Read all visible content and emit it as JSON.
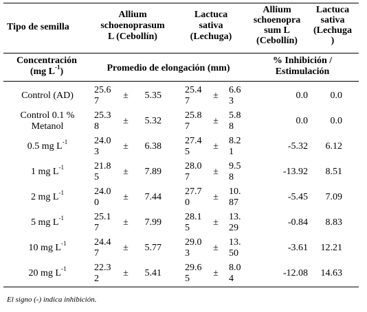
{
  "header": {
    "tipo_semilla": "Tipo de semilla",
    "allium_1": [
      "Allium",
      "schoenoprasum",
      "L (Cebollín)"
    ],
    "lactuca_1": [
      "Lactuca",
      "sativa",
      "(Lechuga)"
    ],
    "allium_2": [
      "Allium",
      "schoenopra",
      "sum L",
      "(Cebollín)"
    ],
    "lactuca_2": [
      "Lactuca",
      "sativa",
      "(Lechuga",
      ")"
    ],
    "concentracion": "Concentración",
    "concentracion_unit_pre": "(mg L",
    "concentracion_unit_sup": "-1",
    "concentracion_unit_post": ")",
    "promedio": "Promedio de elongación (mm)",
    "inhibicion_1": "% Inhibición /",
    "inhibicion_2": "Estimulación"
  },
  "rows": [
    {
      "label1": "Control (AD)",
      "label2": "",
      "sup": "",
      "a_mean": [
        "25.6",
        "7"
      ],
      "pm": "±",
      "a_sd": "5.35",
      "l_mean": [
        "25.4",
        "7"
      ],
      "l_sd": [
        "6.6",
        "3"
      ],
      "a_pct": "0.0",
      "l_pct": "0.0"
    },
    {
      "label1": "Control 0.1 %",
      "label2": "Metanol",
      "sup": "",
      "a_mean": [
        "25.3",
        "8"
      ],
      "pm": "±",
      "a_sd": "5.32",
      "l_mean": [
        "25.8",
        "7"
      ],
      "l_sd": [
        "5.8",
        "8"
      ],
      "a_pct": "0.0",
      "l_pct": "0.0"
    },
    {
      "label1": "0.5 mg L",
      "label2": "",
      "sup": "-1",
      "a_mean": [
        "24.0",
        "3"
      ],
      "pm": "±",
      "a_sd": "6.38",
      "l_mean": [
        "27.4",
        "5"
      ],
      "l_sd": [
        "8.2",
        "1"
      ],
      "a_pct": "-5.32",
      "l_pct": "6.12"
    },
    {
      "label1": "1 mg L",
      "label2": "",
      "sup": "-1",
      "a_mean": [
        "21.8",
        "5"
      ],
      "pm": "±",
      "a_sd": "7.89",
      "l_mean": [
        "28.0",
        "7"
      ],
      "l_sd": [
        "9.5",
        "8"
      ],
      "a_pct": "-13.92",
      "l_pct": "8.51"
    },
    {
      "label1": "2 mg L",
      "label2": "",
      "sup": "-1",
      "a_mean": [
        "24.0",
        "0"
      ],
      "pm": "±",
      "a_sd": "7.44",
      "l_mean": [
        "27.7",
        "0"
      ],
      "l_sd": [
        "10.",
        "87"
      ],
      "a_pct": "-5.45",
      "l_pct": "7.09"
    },
    {
      "label1": "5 mg L",
      "label2": "",
      "sup": "-1",
      "a_mean": [
        "25.1",
        "7"
      ],
      "pm": "±",
      "a_sd": "7.99",
      "l_mean": [
        "28.1",
        "5"
      ],
      "l_sd": [
        "13.",
        "29"
      ],
      "a_pct": "-0.84",
      "l_pct": "8.83"
    },
    {
      "label1": "10 mg L",
      "label2": "",
      "sup": "-1",
      "a_mean": [
        "24.4",
        "7"
      ],
      "pm": "±",
      "a_sd": "5.77",
      "l_mean": [
        "29.0",
        "3"
      ],
      "l_sd": [
        "13.",
        "50"
      ],
      "a_pct": "-3.61",
      "l_pct": "12.21"
    },
    {
      "label1": "20 mg L",
      "label2": "",
      "sup": "-1",
      "a_mean": [
        "22.3",
        "2"
      ],
      "pm": "±",
      "a_sd": "5.41",
      "l_mean": [
        "29.6",
        "5"
      ],
      "l_sd": [
        "8.0",
        "4"
      ],
      "a_pct": "-12.08",
      "l_pct": "14.63"
    }
  ],
  "footnote": "El signo (-) indica inhibición."
}
